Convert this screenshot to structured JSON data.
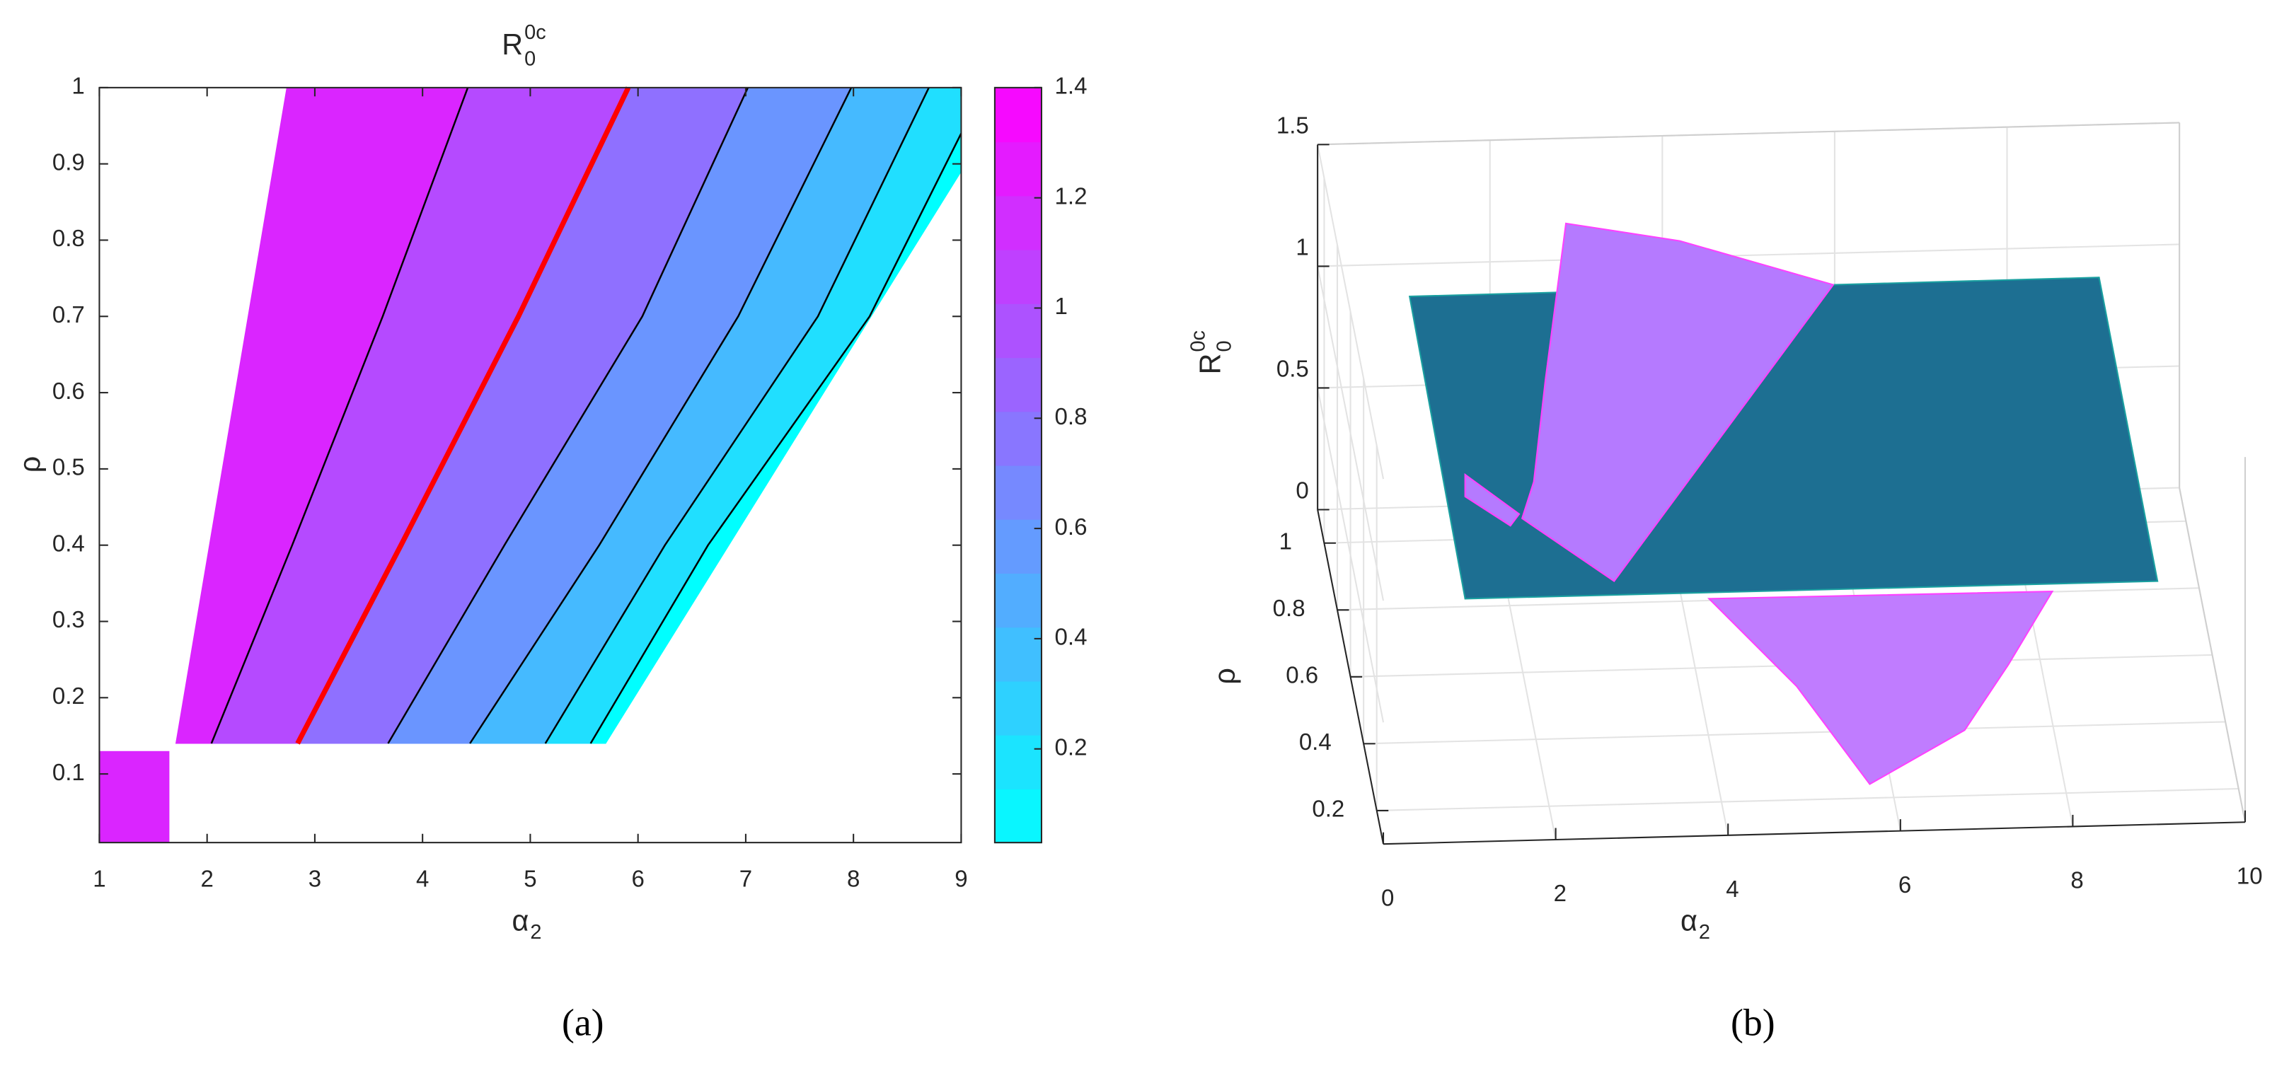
{
  "chart_data": [
    {
      "type": "contour",
      "title": {
        "base": "R",
        "sup": "0c",
        "sub": "0"
      },
      "xlabel": {
        "base": "α",
        "sub": "2"
      },
      "ylabel": "ρ",
      "xlim": [
        1,
        9
      ],
      "ylim": [
        0.01,
        1
      ],
      "xticks": [
        1,
        2,
        3,
        4,
        5,
        6,
        7,
        8,
        9
      ],
      "yticks": [
        0.1,
        0.2,
        0.3,
        0.4,
        0.5,
        0.6,
        0.7,
        0.8,
        0.9,
        1
      ],
      "colormap": "cool",
      "colorbar": {
        "clim": [
          0.03,
          1.4
        ],
        "ticks": [
          0.2,
          0.4,
          0.6,
          0.8,
          1,
          1.2,
          1.4
        ]
      },
      "contours": [
        {
          "level": 1.2,
          "color": "#000000",
          "x": [
            2.04,
            2.79,
            3.63,
            4.42
          ],
          "y": [
            0.14,
            0.4,
            0.7,
            1
          ]
        },
        {
          "level": 1,
          "color": "#ff0000",
          "x": [
            2.84,
            3.8,
            4.89,
            5.91
          ],
          "y": [
            0.14,
            0.4,
            0.7,
            1
          ]
        },
        {
          "level": 0.8,
          "color": "#000000",
          "x": [
            3.68,
            4.76,
            6.04,
            7.02
          ],
          "y": [
            0.14,
            0.4,
            0.7,
            1
          ]
        },
        {
          "level": 0.6,
          "color": "#000000",
          "x": [
            4.44,
            5.64,
            6.93,
            7.98
          ],
          "y": [
            0.14,
            0.4,
            0.7,
            1
          ]
        },
        {
          "level": 0.4,
          "color": "#000000",
          "x": [
            5.14,
            6.25,
            7.67,
            8.7
          ],
          "y": [
            0.14,
            0.4,
            0.7,
            1
          ]
        },
        {
          "level": 0.2,
          "color": "#000000",
          "x": [
            5.56,
            6.65,
            8.15,
            9
          ],
          "y": [
            0.14,
            0.4,
            0.7,
            0.94
          ]
        }
      ],
      "edges": {
        "left": {
          "x": [
            1.71,
            2.74
          ],
          "y": [
            0.14,
            1
          ]
        },
        "right": {
          "x": [
            5.7,
            9
          ],
          "y": [
            0.14,
            0.89
          ]
        }
      },
      "patch": {
        "x": [
          1,
          1.65
        ],
        "y": [
          0.01,
          0.13
        ]
      },
      "caption": "(a)"
    },
    {
      "type": "surface3d",
      "xlabel": {
        "base": "α",
        "sub": "2"
      },
      "ylabel": "ρ",
      "zlabel": {
        "base": "R",
        "sup": "0c",
        "sub": "0"
      },
      "xlim": [
        0,
        10
      ],
      "ylim": [
        0.1,
        1.1
      ],
      "zlim": [
        0,
        1.5
      ],
      "xticks": [
        0,
        2,
        4,
        6,
        8,
        10
      ],
      "yticks": [
        0.2,
        0.4,
        0.6,
        0.8,
        1
      ],
      "zticks": [
        0,
        0.5,
        1,
        1.5
      ],
      "caption": "(b)"
    }
  ]
}
